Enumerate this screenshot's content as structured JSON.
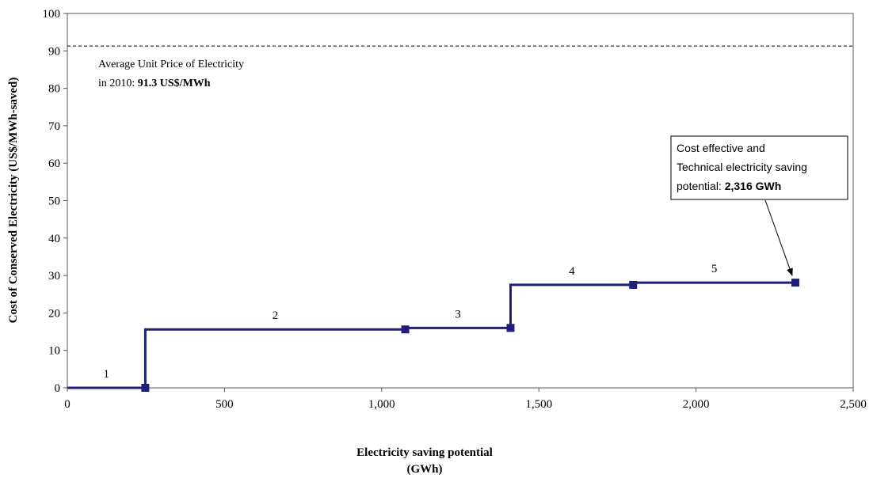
{
  "chart_data": {
    "type": "line",
    "step": true,
    "xlabel_lines": [
      "Electricity saving potential",
      "(GWh)"
    ],
    "ylabel": "Cost of Conserved Electricity (US$/MWh-saved)",
    "xlim": [
      0,
      2500
    ],
    "ylim": [
      0,
      100
    ],
    "x_ticks": [
      0,
      500,
      1000,
      1500,
      2000,
      2500
    ],
    "x_tick_labels": [
      "0",
      "500",
      "1,000",
      "1,500",
      "2,000",
      "2,500"
    ],
    "y_ticks": [
      0,
      10,
      20,
      30,
      40,
      50,
      60,
      70,
      80,
      90,
      100
    ],
    "y_tick_labels": [
      "0",
      "10",
      "20",
      "30",
      "40",
      "50",
      "60",
      "70",
      "80",
      "90",
      "100"
    ],
    "grid": false,
    "series": [
      {
        "color": "#1f1f7a",
        "steps": [
          {
            "label": "1",
            "x_start": 0,
            "x_end": 248,
            "y": 0
          },
          {
            "label": "2",
            "x_start": 248,
            "x_end": 1075,
            "y": 15.6
          },
          {
            "label": "3",
            "x_start": 1075,
            "x_end": 1410,
            "y": 16.0
          },
          {
            "label": "4",
            "x_start": 1410,
            "x_end": 1800,
            "y": 27.5
          },
          {
            "label": "5",
            "x_start": 1800,
            "x_end": 2316,
            "y": 28.1
          }
        ]
      }
    ],
    "reference_line": {
      "y": 91.3,
      "style": "dashed"
    },
    "annotations": {
      "price_line1": "Average Unit Price of Electricity",
      "price_line2_prefix": "in 2010: ",
      "price_line2_bold": "91.3 US$/MWh",
      "callout_line1": "Cost effective and",
      "callout_line2": "Technical electricity saving",
      "callout_line3_prefix": "potential: ",
      "callout_line3_bold": "2,316 GWh",
      "callout_target": {
        "x": 2316,
        "y": 28.1
      }
    }
  }
}
